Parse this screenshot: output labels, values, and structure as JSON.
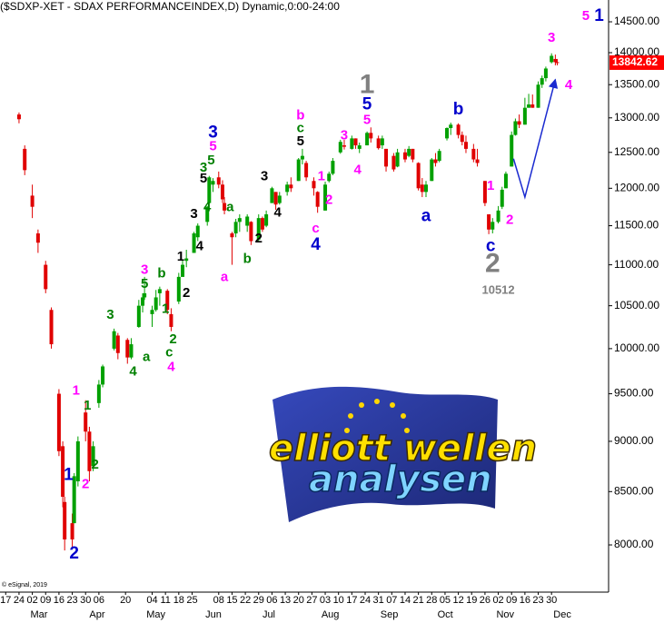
{
  "chart_data": {
    "type": "candlestick",
    "title": "($SDXP-XET - SDAX PERFORMANCEINDEX,D) Dynamic,0:00-24:00",
    "watermark": "© eSignal, 2019",
    "logo": {
      "line1": "elliott wellen",
      "line2": "analysen"
    },
    "up_color": "#00a000",
    "down_color": "#e00000",
    "log_scale": true,
    "x": [
      "02-24",
      "02-27",
      "03-02",
      "03-05",
      "03-09",
      "03-12",
      "03-16",
      "03-18",
      "03-19",
      "03-23",
      "03-24",
      "03-26",
      "03-30",
      "04-01",
      "04-03",
      "04-06",
      "04-08",
      "04-14",
      "04-16",
      "04-21",
      "04-23",
      "04-27",
      "04-29",
      "04-30",
      "05-04",
      "05-06",
      "05-08",
      "05-12",
      "05-14",
      "05-18",
      "05-20",
      "05-22",
      "05-26",
      "05-28",
      "06-02",
      "06-03",
      "06-05",
      "06-08",
      "06-10",
      "06-11",
      "06-15",
      "06-17",
      "06-19",
      "06-23",
      "06-25",
      "06-29",
      "07-01",
      "07-03",
      "07-06",
      "07-08",
      "07-10",
      "07-14",
      "07-16",
      "07-20",
      "07-22",
      "07-24",
      "07-28",
      "07-30",
      "08-03",
      "08-05",
      "08-07",
      "08-11",
      "08-13",
      "08-17",
      "08-19",
      "08-21",
      "08-25",
      "08-27",
      "08-31",
      "09-02",
      "09-04",
      "09-08",
      "09-10",
      "09-14",
      "09-16",
      "09-18",
      "09-21",
      "09-23",
      "09-25",
      "09-28",
      "09-30",
      "10-02",
      "10-06",
      "10-08",
      "10-12",
      "10-14",
      "10-16",
      "10-20",
      "10-22",
      "10-26",
      "10-28",
      "10-30",
      "11-02",
      "11-04",
      "11-06",
      "11-09",
      "11-11",
      "11-13",
      "11-16",
      "11-18",
      "11-20",
      "11-23",
      "11-25",
      "11-27",
      "11-30",
      "12-02",
      "12-03"
    ],
    "open": [
      13050,
      12550,
      11900,
      11400,
      11000,
      10450,
      9500,
      8950,
      8400,
      8200,
      8200,
      8600,
      9300,
      9100,
      8750,
      9400,
      9600,
      10000,
      10150,
      10100,
      9900,
      10250,
      10500,
      10600,
      10400,
      10450,
      10650,
      10680,
      10400,
      10550,
      10850,
      11050,
      11150,
      11350,
      11550,
      11800,
      12050,
      12150,
      12050,
      11800,
      11400,
      11400,
      11550,
      11500,
      11550,
      11320,
      11600,
      11500,
      11800,
      11950,
      11800,
      11950,
      12050,
      12100,
      12400,
      12350,
      12100,
      11950,
      11700,
      12100,
      12200,
      12500,
      12600,
      12550,
      12700,
      12550,
      12600,
      12780,
      12700,
      12600,
      12550,
      12450,
      12300,
      12500,
      12450,
      12550,
      12350,
      12050,
      11950,
      12100,
      12400,
      12380,
      12700,
      12850,
      12900,
      12750,
      12650,
      12550,
      12400,
      12100,
      11650,
      11450,
      11550,
      11750,
      12000,
      12300,
      12750,
      12950,
      12900,
      13150,
      13200,
      13150,
      13500,
      13600,
      13850,
      13900,
      13850
    ],
    "high": [
      13080,
      12600,
      12050,
      11450,
      11050,
      10480,
      9550,
      9000,
      8450,
      8290,
      8680,
      9050,
      9430,
      9150,
      9000,
      9650,
      9820,
      10230,
      10180,
      10120,
      10120,
      10570,
      10650,
      10850,
      10500,
      10690,
      10730,
      10700,
      10470,
      10900,
      11070,
      11190,
      11420,
      11530,
      11760,
      12170,
      12140,
      12230,
      12110,
      11880,
      11420,
      11590,
      11650,
      11650,
      11560,
      11650,
      11620,
      11700,
      12020,
      11950,
      11950,
      12090,
      12150,
      12420,
      12550,
      12380,
      12150,
      11960,
      12090,
      12230,
      12420,
      12680,
      12680,
      12740,
      12700,
      12640,
      12800,
      12860,
      12740,
      12740,
      12550,
      12490,
      12550,
      12550,
      12590,
      12550,
      12360,
      12140,
      12100,
      12420,
      12490,
      12550,
      12860,
      12930,
      12920,
      12800,
      12740,
      12620,
      12550,
      12100,
      11650,
      11600,
      11760,
      12020,
      12230,
      12800,
      12990,
      13050,
      13300,
      13360,
      13350,
      13550,
      13640,
      13780,
      13990,
      13970,
      13900
    ],
    "low": [
      12920,
      12180,
      11600,
      11150,
      10650,
      10000,
      8850,
      8350,
      7950,
      7980,
      8200,
      8550,
      9000,
      8600,
      8700,
      9350,
      9570,
      9980,
      9880,
      9830,
      9880,
      10240,
      10420,
      10570,
      10250,
      10430,
      10500,
      10400,
      10200,
      10520,
      10850,
      10970,
      11150,
      11300,
      11500,
      11800,
      11950,
      12000,
      11800,
      11650,
      11000,
      11350,
      11420,
      11420,
      11250,
      11300,
      11420,
      11480,
      11800,
      11710,
      11780,
      11900,
      11950,
      12100,
      12330,
      12100,
      11900,
      11670,
      11700,
      12080,
      12180,
      12480,
      12540,
      12540,
      12550,
      12490,
      12600,
      12640,
      12540,
      12550,
      12230,
      12230,
      12290,
      12360,
      12430,
      12360,
      11970,
      11880,
      11880,
      12100,
      12300,
      12360,
      12670,
      12750,
      12700,
      12600,
      12490,
      12360,
      12300,
      11760,
      11390,
      11400,
      11530,
      11720,
      12000,
      12300,
      12740,
      12850,
      12900,
      13150,
      13150,
      13150,
      13450,
      13550,
      13830,
      13800,
      13800
    ],
    "close": [
      12980,
      12250,
      11750,
      11280,
      10700,
      10050,
      8900,
      8450,
      8050,
      8050,
      8650,
      9000,
      9100,
      8700,
      8950,
      9600,
      9800,
      10200,
      9950,
      9900,
      10050,
      10500,
      10600,
      10650,
      10450,
      10600,
      10700,
      10450,
      10250,
      10850,
      11000,
      11080,
      11400,
      11500,
      11750,
      12150,
      12100,
      12050,
      11850,
      11700,
      11350,
      11550,
      11600,
      11620,
      11300,
      11600,
      11450,
      11650,
      12000,
      11780,
      11900,
      12050,
      12000,
      12400,
      12450,
      12150,
      12000,
      11750,
      12050,
      12200,
      12380,
      12650,
      12580,
      12700,
      12600,
      12600,
      12780,
      12700,
      12560,
      12700,
      12300,
      12260,
      12500,
      12400,
      12550,
      12400,
      12000,
      11950,
      12050,
      12400,
      12350,
      12520,
      12850,
      12900,
      12750,
      12650,
      12550,
      12400,
      12350,
      11800,
      11450,
      11550,
      11700,
      11980,
      12200,
      12750,
      12950,
      12900,
      13150,
      13200,
      13150,
      13500,
      13600,
      13750,
      13950,
      13850,
      13842.62
    ],
    "last_price": 13842.62,
    "last_price_color": "#ff0000",
    "xlim": [
      "02-14",
      "12-30"
    ],
    "xticks": [
      {
        "value": "02-17",
        "label": "17"
      },
      {
        "value": "02-24",
        "label": "24"
      },
      {
        "value": "03-02",
        "label": "02"
      },
      {
        "value": "03-09",
        "label": "09"
      },
      {
        "value": "03-16",
        "label": "16"
      },
      {
        "value": "03-23",
        "label": "23"
      },
      {
        "value": "03-30",
        "label": "30"
      },
      {
        "value": "04-06",
        "label": "06"
      },
      {
        "value": "04-20",
        "label": "20"
      },
      {
        "value": "05-04",
        "label": "04"
      },
      {
        "value": "05-11",
        "label": "11"
      },
      {
        "value": "05-18",
        "label": "18"
      },
      {
        "value": "05-25",
        "label": "25"
      },
      {
        "value": "06-08",
        "label": "08"
      },
      {
        "value": "06-15",
        "label": "15"
      },
      {
        "value": "06-22",
        "label": "22"
      },
      {
        "value": "06-29",
        "label": "29"
      },
      {
        "value": "07-06",
        "label": "06"
      },
      {
        "value": "07-13",
        "label": "13"
      },
      {
        "value": "07-20",
        "label": "20"
      },
      {
        "value": "07-27",
        "label": "27"
      },
      {
        "value": "08-03",
        "label": "03"
      },
      {
        "value": "08-10",
        "label": "10"
      },
      {
        "value": "08-17",
        "label": "17"
      },
      {
        "value": "08-24",
        "label": "24"
      },
      {
        "value": "08-31",
        "label": "31"
      },
      {
        "value": "09-07",
        "label": "07"
      },
      {
        "value": "09-14",
        "label": "14"
      },
      {
        "value": "09-21",
        "label": "21"
      },
      {
        "value": "09-28",
        "label": "28"
      },
      {
        "value": "10-05",
        "label": "05"
      },
      {
        "value": "10-12",
        "label": "12"
      },
      {
        "value": "10-19",
        "label": "19"
      },
      {
        "value": "10-26",
        "label": "26"
      },
      {
        "value": "11-02",
        "label": "02"
      },
      {
        "value": "11-09",
        "label": "09"
      },
      {
        "value": "11-16",
        "label": "16"
      },
      {
        "value": "11-23",
        "label": "23"
      },
      {
        "value": "11-30",
        "label": "30"
      }
    ],
    "month_ticks": [
      {
        "value": "03-01",
        "label": "Mar"
      },
      {
        "value": "04-01",
        "label": "Apr"
      },
      {
        "value": "05-01",
        "label": "May"
      },
      {
        "value": "06-01",
        "label": "Jun"
      },
      {
        "value": "07-01",
        "label": "Jul"
      },
      {
        "value": "08-01",
        "label": "Aug"
      },
      {
        "value": "09-01",
        "label": "Sep"
      },
      {
        "value": "10-01",
        "label": "Oct"
      },
      {
        "value": "11-01",
        "label": "Nov"
      },
      {
        "value": "12-01",
        "label": "Dec"
      }
    ],
    "ylim": [
      7582,
      14864
    ],
    "yticks": [
      {
        "value": 8000,
        "label": "8000.00"
      },
      {
        "value": 8500,
        "label": "8500.00"
      },
      {
        "value": 9000,
        "label": "9000.00"
      },
      {
        "value": 9500,
        "label": "9500.00"
      },
      {
        "value": 10000,
        "label": "10000.00"
      },
      {
        "value": 10500,
        "label": "10500.00"
      },
      {
        "value": 11000,
        "label": "11000.00"
      },
      {
        "value": 11500,
        "label": "11500.00"
      },
      {
        "value": 12000,
        "label": "12000.00"
      },
      {
        "value": 12500,
        "label": "12500.00"
      },
      {
        "value": 13000,
        "label": "13000.00"
      },
      {
        "value": 13500,
        "label": "13500.00"
      },
      {
        "value": 14000,
        "label": "14000.00"
      },
      {
        "value": 14500,
        "label": "14500.00"
      }
    ],
    "projection": {
      "color": "#1a2ad0",
      "x": [
        "11-10",
        "11-16",
        "12-02"
      ],
      "y": [
        12410,
        11880,
        13580
      ]
    },
    "low_note": {
      "text": 10512,
      "x": "11-02",
      "y": 10680,
      "color": "#808080"
    },
    "annotations": [
      {
        "text": "5",
        "x": "12-18",
        "y": 14590,
        "color": "#ff00ff"
      },
      {
        "text": "1",
        "x": "12-25",
        "y": 14590,
        "color": "#0000cc"
      },
      {
        "text": "3",
        "x": "11-30",
        "y": 14230,
        "color": "#ff00ff"
      },
      {
        "text": "4",
        "x": "12-09",
        "y": 13490,
        "color": "#ff00ff"
      },
      {
        "text": "1",
        "x": "08-25",
        "y": 13480,
        "color": "#808080"
      },
      {
        "text": "5",
        "x": "08-25",
        "y": 13190,
        "color": "#0000cc"
      },
      {
        "text": "5",
        "x": "08-25",
        "y": 12960,
        "color": "#ff00ff"
      },
      {
        "text": "b",
        "x": "10-12",
        "y": 13120,
        "color": "#0000cc"
      },
      {
        "text": "b",
        "x": "07-21",
        "y": 13030,
        "color": "#ff00ff"
      },
      {
        "text": "c",
        "x": "07-21",
        "y": 12840,
        "color": "#008000"
      },
      {
        "text": "5",
        "x": "07-21",
        "y": 12650,
        "color": "#000000"
      },
      {
        "text": "3",
        "x": "06-05",
        "y": 12780,
        "color": "#0000cc"
      },
      {
        "text": "5",
        "x": "06-05",
        "y": 12580,
        "color": "#ff00ff"
      },
      {
        "text": "5",
        "x": "06-04",
        "y": 12380,
        "color": "#008000"
      },
      {
        "text": "3",
        "x": "05-31",
        "y": 12280,
        "color": "#008000"
      },
      {
        "text": "5",
        "x": "05-31",
        "y": 12130,
        "color": "#000000"
      },
      {
        "text": "3",
        "x": "08-13",
        "y": 12740,
        "color": "#ff00ff"
      },
      {
        "text": "4",
        "x": "08-20",
        "y": 12250,
        "color": "#ff00ff"
      },
      {
        "text": "1",
        "x": "08-01",
        "y": 12160,
        "color": "#ff00ff"
      },
      {
        "text": "2",
        "x": "08-05",
        "y": 11840,
        "color": "#ff00ff"
      },
      {
        "text": "3",
        "x": "07-02",
        "y": 12160,
        "color": "#000000"
      },
      {
        "text": "4",
        "x": "07-09",
        "y": 11670,
        "color": "#000000"
      },
      {
        "text": "1",
        "x": "10-29",
        "y": 12030,
        "color": "#ff00ff"
      },
      {
        "text": "2",
        "x": "11-08",
        "y": 11570,
        "color": "#ff00ff"
      },
      {
        "text": "a",
        "x": "09-25",
        "y": 11620,
        "color": "#0000cc"
      },
      {
        "text": "c",
        "x": "10-29",
        "y": 11230,
        "color": "#0000cc"
      },
      {
        "text": "2",
        "x": "10-30",
        "y": 11000,
        "color": "#808080"
      },
      {
        "text": "c",
        "x": "07-29",
        "y": 11460,
        "color": "#ff00ff"
      },
      {
        "text": "4",
        "x": "07-29",
        "y": 11250,
        "color": "#0000cc"
      },
      {
        "text": "a",
        "x": "06-14",
        "y": 11740,
        "color": "#008000"
      },
      {
        "text": "4",
        "x": "06-02",
        "y": 11740,
        "color": "#008000"
      },
      {
        "text": "3",
        "x": "05-26",
        "y": 11650,
        "color": "#000000"
      },
      {
        "text": "4",
        "x": "05-29",
        "y": 11230,
        "color": "#000000"
      },
      {
        "text": "2",
        "x": "06-29",
        "y": 11330,
        "color": "#000000"
      },
      {
        "text": "b",
        "x": "06-23",
        "y": 11070,
        "color": "#008000"
      },
      {
        "text": "a",
        "x": "06-11",
        "y": 10840,
        "color": "#ff00ff"
      },
      {
        "text": "1",
        "x": "05-19",
        "y": 11100,
        "color": "#000000"
      },
      {
        "text": "2",
        "x": "05-22",
        "y": 10650,
        "color": "#000000"
      },
      {
        "text": "3",
        "x": "04-30",
        "y": 10930,
        "color": "#ff00ff"
      },
      {
        "text": "5",
        "x": "04-30",
        "y": 10760,
        "color": "#008000"
      },
      {
        "text": "b",
        "x": "05-09",
        "y": 10890,
        "color": "#008000"
      },
      {
        "text": "1",
        "x": "05-11",
        "y": 10460,
        "color": "#008000"
      },
      {
        "text": "2",
        "x": "05-15",
        "y": 10100,
        "color": "#008000"
      },
      {
        "text": "c",
        "x": "05-13",
        "y": 9950,
        "color": "#008000"
      },
      {
        "text": "4",
        "x": "05-14",
        "y": 9790,
        "color": "#ff00ff"
      },
      {
        "text": "3",
        "x": "04-12",
        "y": 10390,
        "color": "#008000"
      },
      {
        "text": "a",
        "x": "05-01",
        "y": 9900,
        "color": "#008000"
      },
      {
        "text": "4",
        "x": "04-24",
        "y": 9740,
        "color": "#008000"
      },
      {
        "text": "1",
        "x": "03-25",
        "y": 9530,
        "color": "#ff00ff"
      },
      {
        "text": "1",
        "x": "03-31",
        "y": 9370,
        "color": "#008000"
      },
      {
        "text": "2",
        "x": "03-30",
        "y": 8570,
        "color": "#ff00ff"
      },
      {
        "text": "2",
        "x": "04-04",
        "y": 8760,
        "color": "#008000"
      },
      {
        "text": "1",
        "x": "03-21",
        "y": 8660,
        "color": "#0000cc"
      },
      {
        "text": "2",
        "x": "03-24",
        "y": 7920,
        "color": "#0000cc"
      }
    ]
  }
}
